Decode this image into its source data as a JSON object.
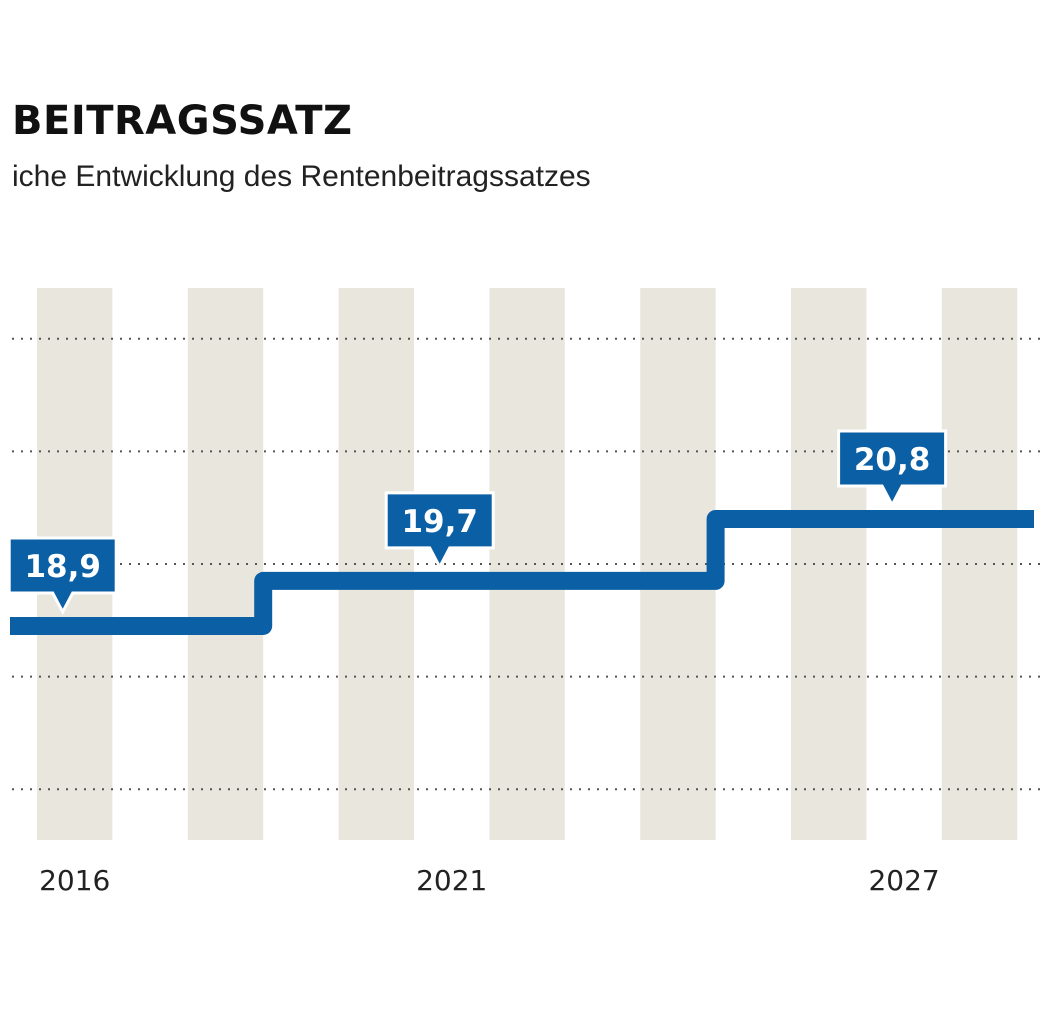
{
  "chart_data": {
    "type": "line",
    "step": true,
    "title": "BEITRAGSSATZ",
    "subtitle": "iche Entwicklung des Rentenbeitragssatzes",
    "x": [
      2016,
      2017,
      2018,
      2019,
      2020,
      2021,
      2022,
      2023,
      2024,
      2025,
      2026,
      2027,
      2028
    ],
    "values": [
      18.9,
      18.9,
      18.9,
      19.7,
      19.7,
      19.7,
      19.7,
      19.7,
      19.7,
      20.8,
      20.8,
      20.8,
      20.8
    ],
    "xticks": [
      "2016",
      "2021",
      "2027"
    ],
    "ylim": [
      15.1,
      24.9
    ],
    "gridlines_y": [
      16,
      18,
      20,
      22,
      24
    ],
    "grid": "dotted horizontal",
    "annotations": [
      {
        "x": 2016,
        "value": 18.9,
        "text": "18,9"
      },
      {
        "x": 2021,
        "value": 19.7,
        "text": "19,7"
      },
      {
        "x": 2027,
        "value": 20.8,
        "text": "20,8"
      }
    ],
    "colors": {
      "line": "#0b5fa5",
      "stripe": "#e9e6de",
      "grid": "#555555"
    }
  }
}
